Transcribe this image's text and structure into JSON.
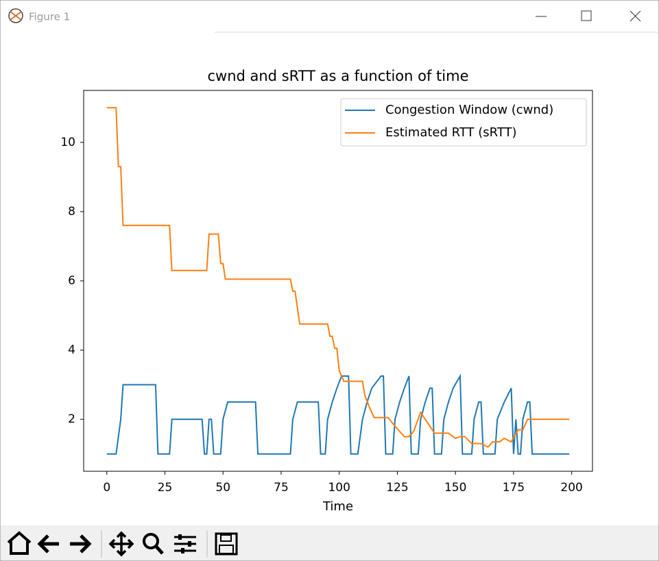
{
  "window": {
    "title": "Figure 1"
  },
  "chart_data": {
    "type": "line",
    "title": "cwnd and sRTT as a function of time",
    "x_label": "Time",
    "xlim": [
      -9.95,
      208.95
    ],
    "xticks": [
      0,
      25,
      50,
      75,
      100,
      125,
      150,
      175,
      200
    ],
    "ylim": [
      0.5,
      11.5
    ],
    "yticks": [
      2,
      4,
      6,
      8,
      10
    ],
    "grid": false,
    "legend": "upper right",
    "series": [
      {
        "name": "Congestion Window (cwnd)",
        "color": "#1f77b4",
        "x": [
          0,
          4,
          6,
          7,
          21,
          22,
          27,
          28,
          41,
          42,
          43,
          44,
          45,
          46,
          49,
          50,
          52,
          64,
          65,
          79,
          80,
          82,
          91,
          92,
          94,
          95,
          97,
          99,
          101,
          104,
          105,
          108,
          110,
          112,
          114,
          118,
          119,
          120,
          123,
          124,
          126,
          128,
          130,
          131,
          134,
          135,
          137,
          139,
          140,
          141,
          144,
          145,
          147,
          149,
          152,
          153,
          157,
          158,
          160,
          161,
          162,
          167,
          168,
          171,
          174,
          175,
          176,
          177,
          178,
          179,
          181,
          182,
          183,
          199
        ],
        "values": [
          1,
          1,
          2,
          3,
          3,
          1,
          1,
          2,
          2,
          1,
          1,
          2,
          2,
          1,
          1,
          2,
          2.5,
          2.5,
          1,
          1,
          2,
          2.5,
          2.5,
          1,
          1,
          2,
          2.5,
          2.9,
          3.25,
          3.25,
          1,
          1,
          2,
          2.5,
          2.9,
          3.25,
          3.25,
          1,
          1,
          2,
          2.5,
          2.9,
          3.25,
          1,
          1,
          2,
          2.5,
          2.9,
          2.9,
          1,
          1,
          2,
          2.5,
          2.9,
          3.25,
          1,
          1,
          2,
          2.5,
          2.5,
          1,
          1,
          2,
          2.5,
          2.9,
          1,
          2,
          1,
          1,
          2,
          2.5,
          2.5,
          1,
          1
        ]
      },
      {
        "name": "Estimated RTT (sRTT)",
        "color": "#ff7f0e",
        "x": [
          0,
          4,
          5,
          6,
          7,
          27,
          28,
          43,
          44,
          48,
          49,
          50,
          51,
          79,
          80,
          81,
          83,
          95,
          96,
          97,
          98,
          99,
          100,
          102,
          110,
          111,
          113,
          115,
          121,
          124,
          128,
          130,
          132,
          135,
          138,
          141,
          147,
          150,
          152,
          154,
          157,
          161,
          164,
          166,
          169,
          171,
          174,
          177,
          179,
          181,
          199
        ],
        "values": [
          11,
          11,
          9.3,
          9.3,
          7.6,
          7.6,
          6.3,
          6.3,
          7.35,
          7.35,
          6.5,
          6.5,
          6.05,
          6.05,
          5.7,
          5.7,
          4.75,
          4.75,
          4.4,
          4.4,
          4.05,
          4.05,
          3.4,
          3.1,
          3.1,
          2.7,
          2.35,
          2.05,
          2.05,
          1.8,
          1.5,
          1.5,
          1.65,
          2.2,
          1.9,
          1.6,
          1.6,
          1.45,
          1.5,
          1.5,
          1.3,
          1.3,
          1.2,
          1.35,
          1.35,
          1.45,
          1.35,
          1.7,
          1.7,
          2,
          2
        ]
      }
    ]
  }
}
